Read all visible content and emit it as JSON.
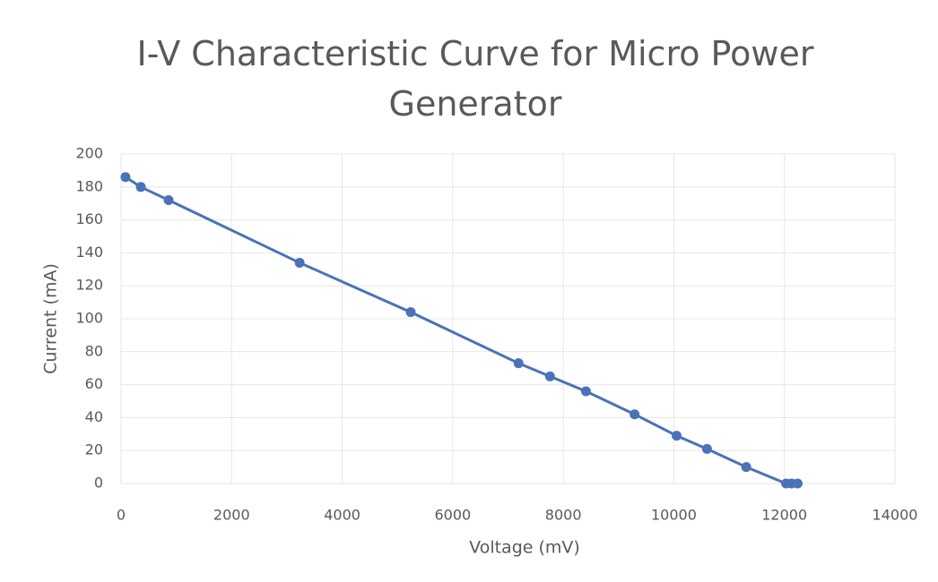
{
  "chart_data": {
    "type": "scatter",
    "title": "I-V Characteristic Curve for Micro Power Generator",
    "x_label": "Voltage (mV)",
    "y_label": "Current (mA)",
    "series": [
      {
        "color": "#4a72b8",
        "x": [
          80,
          357,
          860,
          3230,
          5240,
          7190,
          7760,
          8410,
          9290,
          10050,
          10600,
          11310,
          12030,
          12130,
          12240
        ],
        "values": [
          186,
          180,
          172,
          134,
          104,
          73,
          65,
          56,
          42,
          29,
          21,
          10,
          0,
          0,
          0
        ]
      }
    ],
    "xlim": [
      0,
      14000
    ],
    "xticks": [
      0,
      2000,
      4000,
      6000,
      8000,
      10000,
      12000,
      14000
    ],
    "ylim": [
      0,
      200
    ],
    "yticks": [
      0,
      20,
      40,
      60,
      80,
      100,
      120,
      140,
      160,
      180,
      200
    ],
    "grid": true
  }
}
